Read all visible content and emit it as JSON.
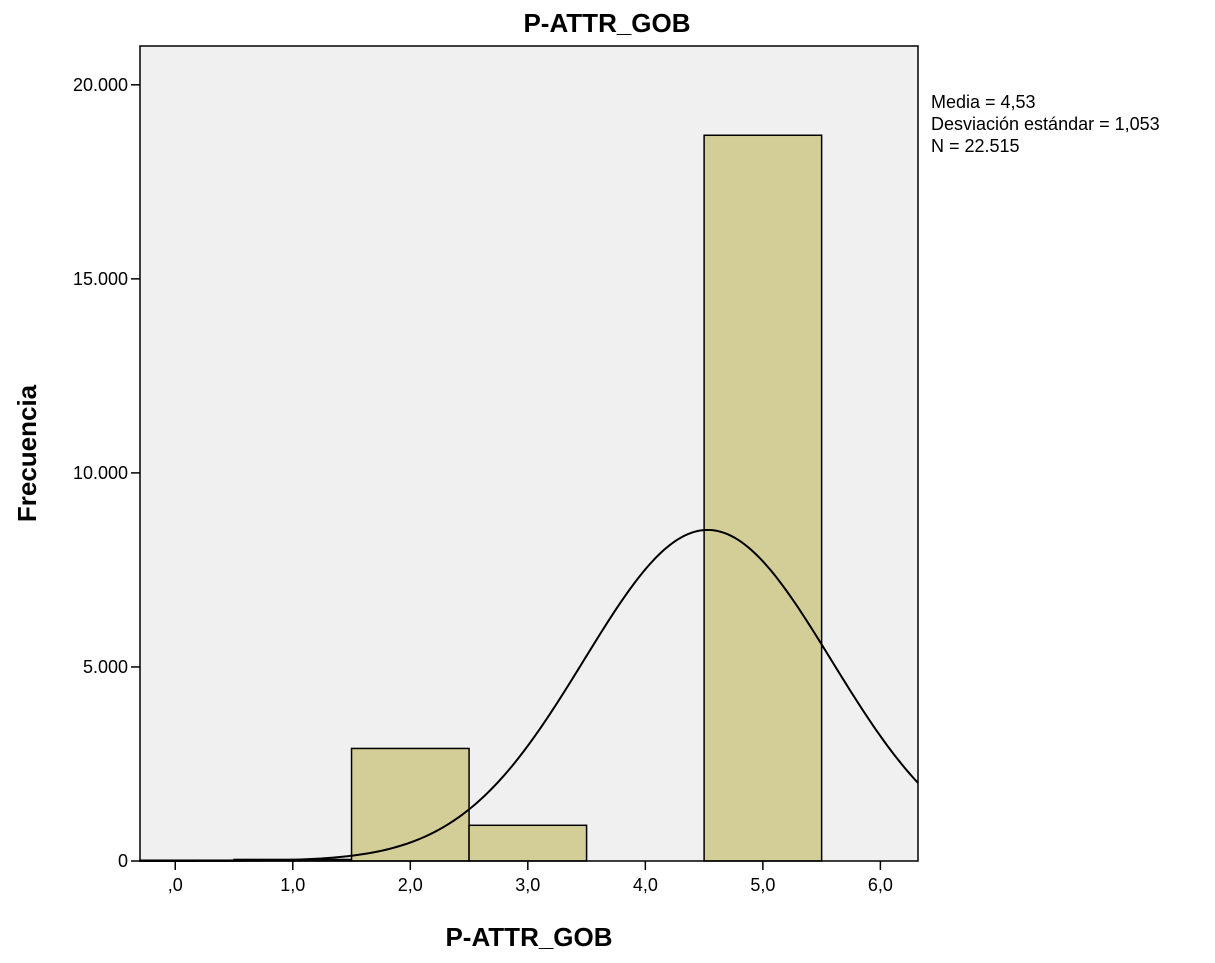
{
  "chart_data": {
    "type": "bar",
    "title": "P-ATTR_GOB",
    "xlabel": "P-ATTR_GOB",
    "ylabel": "Frecuencia",
    "xlim": [
      -0.3,
      6.32
    ],
    "ylim": [
      0,
      21000
    ],
    "x_ticks": [
      {
        "value": 0,
        "label": ",0"
      },
      {
        "value": 1,
        "label": "1,0"
      },
      {
        "value": 2,
        "label": "2,0"
      },
      {
        "value": 3,
        "label": "3,0"
      },
      {
        "value": 4,
        "label": "4,0"
      },
      {
        "value": 5,
        "label": "5,0"
      },
      {
        "value": 6,
        "label": "6,0"
      }
    ],
    "y_ticks": [
      {
        "value": 0,
        "label": "0"
      },
      {
        "value": 5000,
        "label": "5.000"
      },
      {
        "value": 10000,
        "label": "10.000"
      },
      {
        "value": 15000,
        "label": "15.000"
      },
      {
        "value": 20000,
        "label": "20.000"
      }
    ],
    "bins": [
      {
        "start": -0.5,
        "end": 0.5,
        "value": 20
      },
      {
        "start": 0.5,
        "end": 1.5,
        "value": 40
      },
      {
        "start": 1.5,
        "end": 2.5,
        "value": 2900
      },
      {
        "start": 2.5,
        "end": 3.5,
        "value": 920
      },
      {
        "start": 3.5,
        "end": 4.5,
        "value": 0
      },
      {
        "start": 4.5,
        "end": 5.5,
        "value": 18700
      }
    ],
    "normal_curve": {
      "mean": 4.53,
      "sd": 1.053,
      "n": 22515,
      "bin_width": 1
    },
    "stats": [
      "Media = 4,53",
      "Desviación estándar = 1,053",
      "N = 22.515"
    ],
    "grid": false,
    "legend": "none",
    "colors": {
      "plot_background": "#f0f0f0",
      "bar_fill": "#d3ce97",
      "bar_stroke": "#000000",
      "curve": "#000000",
      "frame": "#000000"
    }
  }
}
